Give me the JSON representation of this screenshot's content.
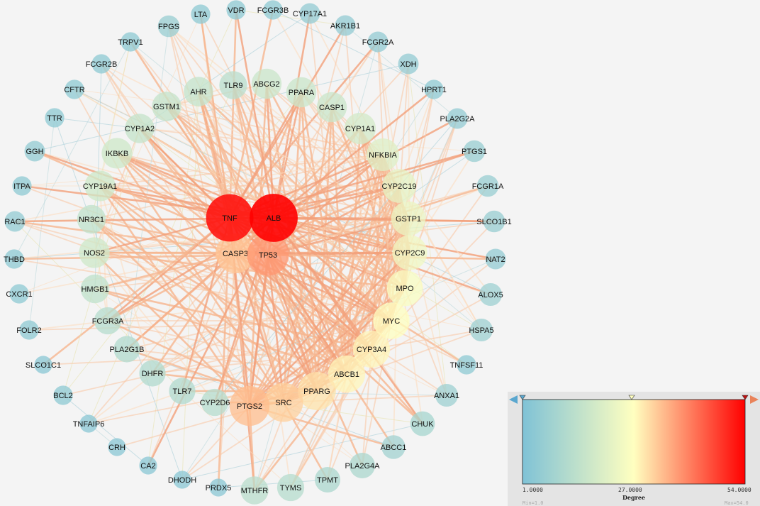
{
  "nodes": [
    {
      "id": "FPGS",
      "degree": 6
    },
    {
      "id": "LTA",
      "degree": 4
    },
    {
      "id": "VDR",
      "degree": 4
    },
    {
      "id": "FCGR3B",
      "degree": 4
    },
    {
      "id": "CYP17A1",
      "degree": 5
    },
    {
      "id": "AKR1B1",
      "degree": 5
    },
    {
      "id": "TRPV1",
      "degree": 4
    },
    {
      "id": "FCGR2A",
      "degree": 5
    },
    {
      "id": "FCGR2B",
      "degree": 4
    },
    {
      "id": "XDH",
      "degree": 5
    },
    {
      "id": "CFTR",
      "degree": 4
    },
    {
      "id": "HPRT1",
      "degree": 4
    },
    {
      "id": "TTR",
      "degree": 4
    },
    {
      "id": "PLA2G2A",
      "degree": 5
    },
    {
      "id": "GGH",
      "degree": 5
    },
    {
      "id": "PTGS1",
      "degree": 6
    },
    {
      "id": "ITPA",
      "degree": 4
    },
    {
      "id": "FCGR1A",
      "degree": 6
    },
    {
      "id": "RAC1",
      "degree": 5
    },
    {
      "id": "SLCO1B1",
      "degree": 6
    },
    {
      "id": "THBD",
      "degree": 4
    },
    {
      "id": "NAT2",
      "degree": 5
    },
    {
      "id": "CXCR1",
      "degree": 4
    },
    {
      "id": "ALOX5",
      "degree": 7
    },
    {
      "id": "FOLR2",
      "degree": 4
    },
    {
      "id": "HSPA5",
      "degree": 7
    },
    {
      "id": "SLCO1C1",
      "degree": 3
    },
    {
      "id": "TNFSF11",
      "degree": 4
    },
    {
      "id": "BCL2",
      "degree": 4
    },
    {
      "id": "ANXA1",
      "degree": 7
    },
    {
      "id": "TNFAIP6",
      "degree": 3
    },
    {
      "id": "CHUK",
      "degree": 9
    },
    {
      "id": "CRH",
      "degree": 3
    },
    {
      "id": "ABCC1",
      "degree": 8
    },
    {
      "id": "CA2",
      "degree": 3
    },
    {
      "id": "PLA2G4A",
      "degree": 10
    },
    {
      "id": "DHODH",
      "degree": 3
    },
    {
      "id": "TPMT",
      "degree": 10
    },
    {
      "id": "PRDX5",
      "degree": 3
    },
    {
      "id": "TYMS",
      "degree": 12
    },
    {
      "id": "MTHFR",
      "degree": 13
    },
    {
      "id": "AHR",
      "degree": 15
    },
    {
      "id": "TLR9",
      "degree": 13
    },
    {
      "id": "ABCG2",
      "degree": 16
    },
    {
      "id": "PPARA",
      "degree": 16
    },
    {
      "id": "GSTM1",
      "degree": 15
    },
    {
      "id": "CASP1",
      "degree": 16
    },
    {
      "id": "CYP1A2",
      "degree": 15
    },
    {
      "id": "CYP1A1",
      "degree": 18
    },
    {
      "id": "IKBKB",
      "degree": 17
    },
    {
      "id": "NFKBIA",
      "degree": 20
    },
    {
      "id": "CYP19A1",
      "degree": 17
    },
    {
      "id": "CYP2C19",
      "degree": 22
    },
    {
      "id": "NR3C1",
      "degree": 14
    },
    {
      "id": "GSTP1",
      "degree": 23
    },
    {
      "id": "NOS2",
      "degree": 17
    },
    {
      "id": "CYP2C9",
      "degree": 24
    },
    {
      "id": "HMGB1",
      "degree": 14
    },
    {
      "id": "MPO",
      "degree": 26
    },
    {
      "id": "FCGR3A",
      "degree": 12
    },
    {
      "id": "MYC",
      "degree": 27
    },
    {
      "id": "PLA2G1B",
      "degree": 11
    },
    {
      "id": "CYP3A4",
      "degree": 28
    },
    {
      "id": "DHFR",
      "degree": 11
    },
    {
      "id": "ABCB1",
      "degree": 28
    },
    {
      "id": "TLR7",
      "degree": 11
    },
    {
      "id": "CYP2D6",
      "degree": 12
    },
    {
      "id": "PTGS2",
      "degree": 34
    },
    {
      "id": "SRC",
      "degree": 32
    },
    {
      "id": "PPARG",
      "degree": 30
    },
    {
      "id": "TNF",
      "degree": 52
    },
    {
      "id": "ALB",
      "degree": 54
    },
    {
      "id": "CASP3",
      "degree": 33
    },
    {
      "id": "TP53",
      "degree": 38
    }
  ],
  "legend": {
    "title": "Degree",
    "min_label": "1.0000",
    "mid_label": "27.0000",
    "max_label": "54.0000",
    "min_caption": "Min=1.0",
    "max_caption": "Max=54.0",
    "stops": [
      "#7fc2d6",
      "#ffffc0",
      "#ff0000"
    ]
  }
}
